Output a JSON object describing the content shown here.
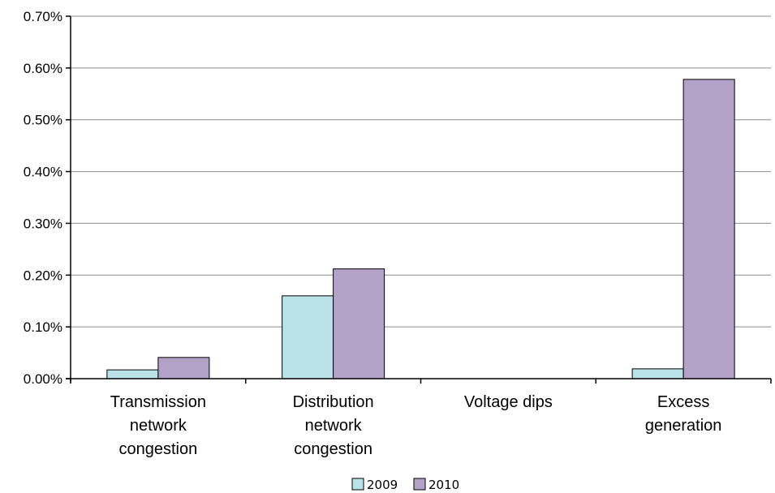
{
  "chart_data": {
    "type": "bar",
    "title": "",
    "xlabel": "",
    "ylabel": "",
    "categories": [
      "Transmission network congestion",
      "Distribution network congestion",
      "Voltage dips",
      "Excess generation"
    ],
    "category_lines": [
      [
        "Transmission",
        "network",
        "congestion"
      ],
      [
        "Distribution",
        "network",
        "congestion"
      ],
      [
        "Voltage dips"
      ],
      [
        "Excess",
        "generation"
      ]
    ],
    "series": [
      {
        "name": "2009",
        "values": [
          0.017,
          0.16,
          0,
          0.019
        ],
        "color": "#b9e3e8"
      },
      {
        "name": "2010",
        "values": [
          0.041,
          0.212,
          0,
          0.578
        ],
        "color": "#b3a2c7"
      }
    ],
    "ylim": [
      0,
      0.7
    ],
    "yticks": [
      0,
      0.1,
      0.2,
      0.3,
      0.4,
      0.5,
      0.6,
      0.7
    ],
    "ytick_labels": [
      "0.00%",
      "0.10%",
      "0.20%",
      "0.30%",
      "0.40%",
      "0.50%",
      "0.60%",
      "0.70%"
    ],
    "y_unit": "%",
    "grid": true,
    "legend_position": "bottom-center",
    "bar_outline_color": "#000000"
  }
}
